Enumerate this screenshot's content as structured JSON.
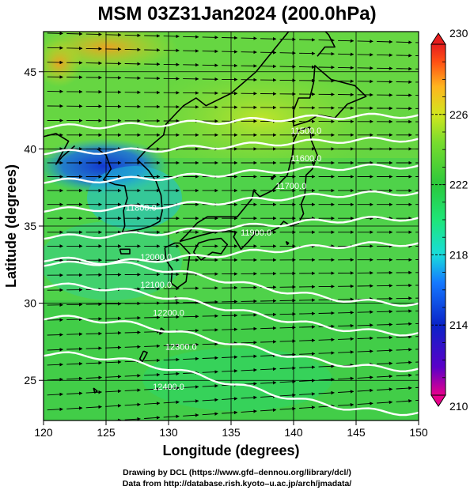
{
  "title": "MSM 03Z31Jan2024 (200.0hPa)",
  "x_axis": {
    "label": "Longitude (degrees)",
    "range": [
      120,
      150
    ],
    "ticks": [
      "120",
      "125",
      "130",
      "135",
      "140",
      "145",
      "150"
    ]
  },
  "y_axis": {
    "label": "Latitude  (degrees)",
    "range": [
      22.4,
      47.6
    ],
    "ticks": [
      "25",
      "30",
      "35",
      "40",
      "45"
    ]
  },
  "colorbar": {
    "range": [
      210,
      230
    ],
    "labels": [
      "230",
      "226",
      "222",
      "218",
      "214",
      "210"
    ],
    "colors": [
      "#e8008c",
      "#5a00c8",
      "#0a23c8",
      "#1478ff",
      "#19dcdc",
      "#1ee678",
      "#2bc83c",
      "#78dc2d",
      "#d2e61e",
      "#ffb41e",
      "#ff5014",
      "#e61e1e"
    ]
  },
  "contour_labels": [
    {
      "text": "11500.0",
      "lon": 141.0,
      "lat": 41.2
    },
    {
      "text": "11600.0",
      "lon": 141.0,
      "lat": 39.4
    },
    {
      "text": "11700.0",
      "lon": 139.8,
      "lat": 37.6
    },
    {
      "text": "11800.0",
      "lon": 127.8,
      "lat": 36.2
    },
    {
      "text": "11900.0",
      "lon": 137.0,
      "lat": 34.6
    },
    {
      "text": "12000.0",
      "lon": 129.0,
      "lat": 33.0
    },
    {
      "text": "12100.0",
      "lon": 129.0,
      "lat": 31.2
    },
    {
      "text": "12200.0",
      "lon": 130.0,
      "lat": 29.4
    },
    {
      "text": "12300.0",
      "lon": 131.0,
      "lat": 27.2
    },
    {
      "text": "12400.0",
      "lon": 130.0,
      "lat": 24.6
    }
  ],
  "contours": [
    {
      "lat": 41.8,
      "amp": 0.6
    },
    {
      "lat": 40.2,
      "amp": 0.7
    },
    {
      "lat": 38.4,
      "amp": 0.8
    },
    {
      "lat": 36.6,
      "amp": 0.9
    },
    {
      "lat": 34.9,
      "amp": 1.0
    },
    {
      "lat": 33.2,
      "amp": 1.1
    },
    {
      "lat": 31.4,
      "amp": 1.2
    },
    {
      "lat": 29.6,
      "amp": 1.3
    },
    {
      "lat": 27.4,
      "amp": 1.4
    },
    {
      "lat": 24.8,
      "amp": 1.6
    }
  ],
  "footer": {
    "line1": "Drawing by DCL (https://www.gfd–dennou.org/library/dcl/)",
    "line2": "Data from http://database.rish.kyoto–u.ac.jp/arch/jmadata/"
  }
}
